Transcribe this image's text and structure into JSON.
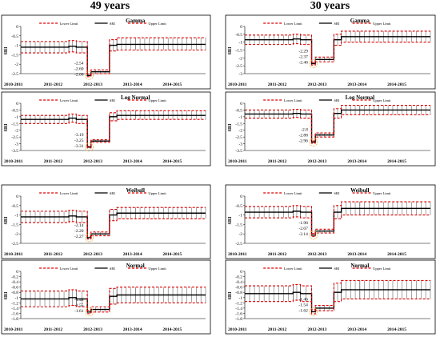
{
  "columns": [
    "49 years",
    "30 years"
  ],
  "legend": {
    "lower": "Lower Limit",
    "sri": "SRI",
    "upper": "Upper Limit"
  },
  "colors": {
    "limit": "#e00000",
    "sri": "#000000",
    "circle": "#e8b33c"
  },
  "chart_data": [
    {
      "type": "line",
      "col": 0,
      "row": 0,
      "title": "Gamma",
      "ylabel": "SRI",
      "ylim": [
        -2.5,
        0
      ],
      "yticks": [
        "0",
        "-0.5",
        "-1",
        "-1.5",
        "-2",
        "-2.5"
      ],
      "xticks": [
        "2010-2011",
        "2011-2012",
        "2012-2013",
        "2013-2014",
        "2014-2015"
      ],
      "annotations": [
        "-2.54",
        "-2.60",
        "-2.66"
      ],
      "series": [
        {
          "name": "SRI",
          "values": [
            -1.1,
            -1.05,
            -1.1,
            -2.6,
            -2.4,
            -1.0,
            -0.95,
            -0.95
          ]
        },
        {
          "name": "Lower Limit",
          "values": [
            -1.4,
            -1.35,
            -1.4,
            -2.66,
            -2.5,
            -1.3,
            -1.25,
            -1.25
          ]
        },
        {
          "name": "Upper Limit",
          "values": [
            -0.8,
            -0.75,
            -0.8,
            -2.54,
            -2.3,
            -0.7,
            -0.6,
            -0.6
          ]
        }
      ]
    },
    {
      "type": "line",
      "col": 0,
      "row": 1,
      "title": "Log Normal",
      "ylabel": "SRI",
      "ylim": [
        -3.5,
        0
      ],
      "yticks": [
        "0",
        "-0.5",
        "-1",
        "-1.5",
        "-2",
        "-2.5",
        "-3",
        "-3.5"
      ],
      "xticks": [
        "2010-2011",
        "2011-2012",
        "2012-2013",
        "2013-2014",
        "2014-2015"
      ],
      "annotations": [
        "-3.19",
        "-3.25",
        "-3.31"
      ],
      "series": [
        {
          "name": "SRI",
          "values": [
            -1.2,
            -1.1,
            -1.2,
            -3.25,
            -2.8,
            -1.0,
            -0.9,
            -0.9
          ]
        },
        {
          "name": "Lower Limit",
          "values": [
            -1.5,
            -1.4,
            -1.5,
            -3.31,
            -2.9,
            -1.3,
            -1.2,
            -1.2
          ]
        },
        {
          "name": "Upper Limit",
          "values": [
            -0.9,
            -0.8,
            -0.9,
            -3.19,
            -2.7,
            -0.7,
            -0.55,
            -0.55
          ]
        }
      ]
    },
    {
      "type": "line",
      "col": 0,
      "row": 2,
      "title": "Weibull",
      "ylabel": "SRI",
      "ylim": [
        -2.5,
        0
      ],
      "yticks": [
        "0",
        "-0.5",
        "-1",
        "-1.5",
        "-2",
        "-2.5"
      ],
      "xticks": [
        "2010-2011",
        "2011-2012",
        "2012-2013",
        "2013-2014",
        "2014-2015"
      ],
      "annotations": [
        "-2.14",
        "-2.20",
        "-2.27"
      ],
      "series": [
        {
          "name": "SRI",
          "values": [
            -1.1,
            -1.05,
            -1.1,
            -2.2,
            -2.0,
            -1.0,
            -0.9,
            -0.9
          ]
        },
        {
          "name": "Lower Limit",
          "values": [
            -1.4,
            -1.35,
            -1.4,
            -2.27,
            -2.1,
            -1.3,
            -1.2,
            -1.2
          ]
        },
        {
          "name": "Upper Limit",
          "values": [
            -0.8,
            -0.75,
            -0.8,
            -2.14,
            -1.9,
            -0.7,
            -0.6,
            -0.6
          ]
        }
      ]
    },
    {
      "type": "line",
      "col": 0,
      "row": 3,
      "title": "Normal",
      "ylabel": "SRI",
      "ylim": [
        -1.8,
        0
      ],
      "yticks": [
        "0",
        "-0.2",
        "-0.4",
        "-0.6",
        "-0.8",
        "-1",
        "-1.2",
        "-1.4",
        "-1.6",
        "-1.8"
      ],
      "xticks": [
        "2010-2011",
        "2011-2012",
        "2012-2013",
        "2013-2014",
        "2014-2015"
      ],
      "annotations": [
        "-1.48",
        "-1.55",
        "-1.61"
      ],
      "series": [
        {
          "name": "SRI",
          "values": [
            -1.05,
            -1.0,
            -1.05,
            -1.55,
            -1.45,
            -0.95,
            -0.9,
            -0.9
          ]
        },
        {
          "name": "Lower Limit",
          "values": [
            -1.35,
            -1.3,
            -1.35,
            -1.61,
            -1.55,
            -1.25,
            -1.2,
            -1.2
          ]
        },
        {
          "name": "Upper Limit",
          "values": [
            -0.75,
            -0.7,
            -0.75,
            -1.48,
            -1.35,
            -0.65,
            -0.6,
            -0.6
          ]
        }
      ]
    },
    {
      "type": "line",
      "col": 1,
      "row": 0,
      "title": "Gamma",
      "ylabel": "SRI",
      "ylim": [
        -3,
        0
      ],
      "yticks": [
        "0",
        "-0.5",
        "-1",
        "-1.5",
        "-2",
        "-2.5",
        "-3"
      ],
      "xticks": [
        "2010-2011",
        "2011-2012",
        "2012-2013",
        "2013-2014",
        "2014-2015"
      ],
      "annotations": [
        "-2.29",
        "-2.37",
        "-2.46"
      ],
      "series": [
        {
          "name": "SRI",
          "values": [
            -0.85,
            -0.8,
            -0.85,
            -2.37,
            -2.1,
            -0.85,
            -0.65,
            -0.65
          ]
        },
        {
          "name": "Lower Limit",
          "values": [
            -1.15,
            -1.1,
            -1.15,
            -2.46,
            -2.25,
            -1.2,
            -1.0,
            -1.0
          ]
        },
        {
          "name": "Upper Limit",
          "values": [
            -0.55,
            -0.5,
            -0.55,
            -2.29,
            -1.95,
            -0.5,
            -0.3,
            -0.3
          ]
        }
      ]
    },
    {
      "type": "line",
      "col": 1,
      "row": 1,
      "title": "Log Normal",
      "ylabel": "SRI",
      "ylim": [
        -3.5,
        0
      ],
      "yticks": [
        "0",
        "-0.5",
        "-1",
        "-1.5",
        "-2",
        "-2.5",
        "-3",
        "-3.5"
      ],
      "xticks": [
        "2010-2011",
        "2011-2012",
        "2012-2013",
        "2013-2014",
        "2014-2015"
      ],
      "annotations": [
        "-2.8",
        "-2.88",
        "-2.96"
      ],
      "series": [
        {
          "name": "SRI",
          "values": [
            -0.8,
            -0.75,
            -0.8,
            -2.88,
            -2.35,
            -0.75,
            -0.5,
            -0.5
          ]
        },
        {
          "name": "Lower Limit",
          "values": [
            -1.1,
            -1.05,
            -1.1,
            -2.96,
            -2.5,
            -1.1,
            -0.85,
            -0.85
          ]
        },
        {
          "name": "Upper Limit",
          "values": [
            -0.5,
            -0.45,
            -0.5,
            -2.8,
            -2.2,
            -0.4,
            -0.15,
            -0.15
          ]
        }
      ]
    },
    {
      "type": "line",
      "col": 1,
      "row": 2,
      "title": "Weibull",
      "ylabel": "SRI",
      "ylim": [
        -2.5,
        0
      ],
      "yticks": [
        "0",
        "-0.5",
        "-1",
        "-1.5",
        "-2",
        "-2.5"
      ],
      "xticks": [
        "2010-2011",
        "2011-2012",
        "2012-2013",
        "2013-2014",
        "2014-2015"
      ],
      "annotations": [
        "-1.98",
        "-2.07",
        "-2.14"
      ],
      "series": [
        {
          "name": "SRI",
          "values": [
            -0.85,
            -0.8,
            -0.85,
            -2.07,
            -1.85,
            -0.85,
            -0.65,
            -0.65
          ]
        },
        {
          "name": "Lower Limit",
          "values": [
            -1.15,
            -1.1,
            -1.15,
            -2.14,
            -1.95,
            -1.2,
            -1.0,
            -1.0
          ]
        },
        {
          "name": "Upper Limit",
          "values": [
            -0.55,
            -0.5,
            -0.55,
            -1.98,
            -1.75,
            -0.5,
            -0.3,
            -0.3
          ]
        }
      ]
    },
    {
      "type": "line",
      "col": 1,
      "row": 3,
      "title": "Normal",
      "ylabel": "SRI",
      "ylim": [
        -1.8,
        0
      ],
      "yticks": [
        "0",
        "-0.2",
        "-0.4",
        "-0.6",
        "-0.8",
        "-1",
        "-1.2",
        "-1.4",
        "-1.6",
        "-1.8"
      ],
      "xticks": [
        "2010-2011",
        "2011-2012",
        "2012-2013",
        "2013-2014",
        "2014-2015"
      ],
      "annotations": [
        "-1.46",
        "-1.54",
        "-1.62"
      ],
      "series": [
        {
          "name": "SRI",
          "values": [
            -0.85,
            -0.8,
            -0.85,
            -1.54,
            -1.4,
            -0.8,
            -0.7,
            -0.7
          ]
        },
        {
          "name": "Lower Limit",
          "values": [
            -1.15,
            -1.1,
            -1.15,
            -1.62,
            -1.5,
            -1.15,
            -1.05,
            -1.05
          ]
        },
        {
          "name": "Upper Limit",
          "values": [
            -0.55,
            -0.5,
            -0.55,
            -1.46,
            -1.3,
            -0.45,
            -0.35,
            -0.35
          ]
        }
      ]
    }
  ]
}
